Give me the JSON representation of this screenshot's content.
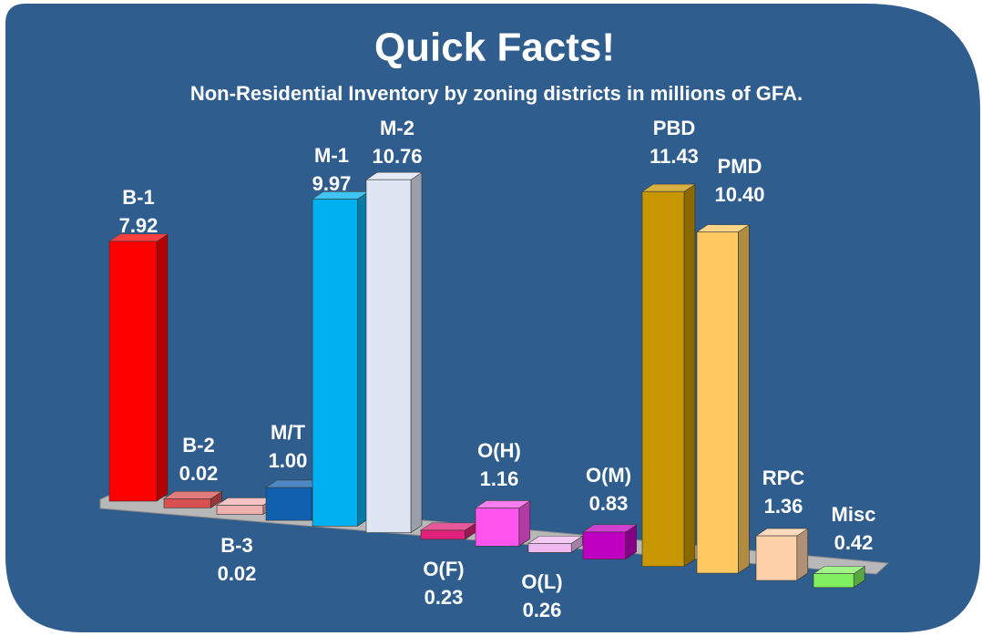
{
  "chart_data": {
    "type": "bar3d",
    "title": "Quick Facts!",
    "subtitle": "Non-Residential Inventory by zoning districts in millions of GFA.",
    "categories": [
      "B-1",
      "B-2",
      "B-3",
      "M/T",
      "M-1",
      "M-2",
      "O(F)",
      "O(H)",
      "O(L)",
      "O(M)",
      "PBD",
      "PMD",
      "RPC",
      "Misc"
    ],
    "values": [
      7.92,
      0.02,
      0.02,
      1.0,
      9.97,
      10.76,
      0.23,
      1.16,
      0.26,
      0.83,
      11.43,
      10.4,
      1.36,
      0.42
    ],
    "value_labels": [
      "7.92",
      "0.02",
      "0.02",
      "1.00",
      "9.97",
      "10.76",
      "0.23",
      "1.16",
      "0.26",
      "0.83",
      "11.43",
      "10.40",
      "1.36",
      "0.42"
    ],
    "colors": [
      "#ff0000",
      "#d95050",
      "#f0b0b0",
      "#1060b0",
      "#00b0f0",
      "#dde6f2",
      "#e0207a",
      "#ff55ee",
      "#f0b8f0",
      "#c000c0",
      "#c89600",
      "#ffc860",
      "#fcd0a8",
      "#80f060"
    ]
  }
}
